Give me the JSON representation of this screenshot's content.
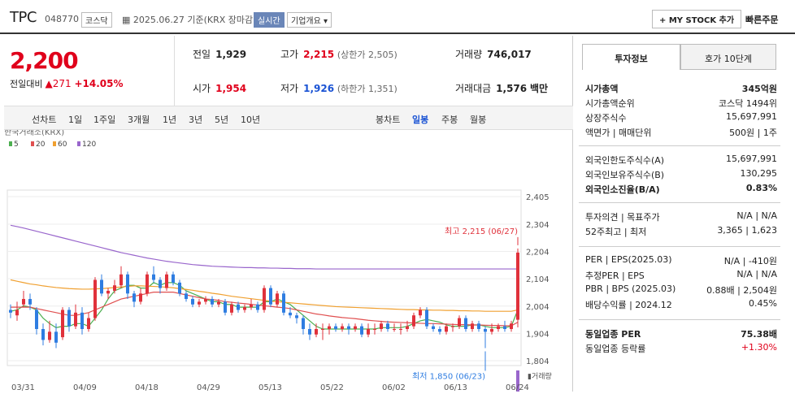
{
  "header": {
    "name": "TPC",
    "code": "048770",
    "market": "코스닥",
    "date": "2025.06.27",
    "basis": "기준(KRX 장마감)",
    "realtime": "실시간",
    "company_info": "기업개요",
    "mystock": "+ MY STOCK 추가",
    "quick_order": "빠른주문"
  },
  "price": {
    "current": "2,200",
    "change_label": "전일대비",
    "change": "▲271",
    "rate": "+14.05%"
  },
  "stats": {
    "prev_label": "전일",
    "prev": "1,929",
    "high_label": "고가",
    "high": "2,215",
    "upper": "(상한가 2,505)",
    "volume_label": "거래량",
    "volume": "746,017",
    "open_label": "시가",
    "open": "1,954",
    "low_label": "저가",
    "low": "1,926",
    "lower": "(하한가 1,351)",
    "amount_label": "거래대금",
    "amount": "1,576",
    "amount_unit": "백만"
  },
  "tabs": {
    "line": "선차트",
    "d1": "1일",
    "w1": "1주일",
    "m3": "3개월",
    "y1": "1년",
    "y3": "3년",
    "y5": "5년",
    "y10": "10년",
    "candle": "봉차트",
    "daily": "일봉",
    "weekly": "주봉",
    "monthly": "월봉"
  },
  "chart_data": {
    "type": "candlestick",
    "source": "한국거래소(KRX)",
    "legend": [
      {
        "name": "5",
        "color": "#4caf50"
      },
      {
        "name": "20",
        "color": "#e05050"
      },
      {
        "name": "60",
        "color": "#f0a030"
      },
      {
        "name": "120",
        "color": "#9966cc"
      }
    ],
    "y_ticks": [
      "2,405",
      "2,304",
      "2,204",
      "2,104",
      "2,004",
      "1,904",
      "1,804"
    ],
    "y_range": [
      1804,
      2405
    ],
    "x_labels": [
      "03/31",
      "04/09",
      "04/18",
      "04/29",
      "05/13",
      "05/22",
      "06/02",
      "06/13",
      "06/24"
    ],
    "max_label": "최고 2,215 (06/27)",
    "min_label": "최저 1,850 (06/23)",
    "volume_label": "거래량",
    "candles": [
      [
        1990,
        1980,
        2010,
        1960
      ],
      [
        1970,
        1990,
        2020,
        1950
      ],
      [
        2010,
        2030,
        2060,
        2000
      ],
      [
        2030,
        2010,
        2050,
        1990
      ],
      [
        1990,
        1920,
        2000,
        1900
      ],
      [
        1920,
        1880,
        1940,
        1860
      ],
      [
        1880,
        1910,
        1950,
        1870
      ],
      [
        1910,
        1870,
        1940,
        1850
      ],
      [
        1890,
        1990,
        2000,
        1880
      ],
      [
        1990,
        1930,
        2000,
        1910
      ],
      [
        1930,
        1980,
        2010,
        1920
      ],
      [
        1980,
        1920,
        2000,
        1900
      ],
      [
        1920,
        1960,
        1980,
        1910
      ],
      [
        1960,
        2100,
        2110,
        1950
      ],
      [
        2100,
        2050,
        2120,
        2040
      ],
      [
        2050,
        2060,
        2070,
        2030
      ],
      [
        2060,
        2080,
        2100,
        2050
      ],
      [
        2080,
        2120,
        2150,
        2070
      ],
      [
        2120,
        2050,
        2130,
        2030
      ],
      [
        2050,
        2020,
        2060,
        2000
      ],
      [
        2020,
        2050,
        2070,
        2010
      ],
      [
        2050,
        2120,
        2130,
        2040
      ],
      [
        2120,
        2100,
        2150,
        2090
      ],
      [
        2100,
        2070,
        2110,
        2050
      ],
      [
        2070,
        2120,
        2130,
        2060
      ],
      [
        2120,
        2090,
        2130,
        2080
      ],
      [
        2090,
        2050,
        2100,
        2040
      ],
      [
        2050,
        2030,
        2060,
        2020
      ],
      [
        2030,
        2010,
        2040,
        2000
      ],
      [
        2010,
        2020,
        2030,
        2000
      ],
      [
        2020,
        2030,
        2040,
        2010
      ],
      [
        2030,
        2010,
        2040,
        2000
      ],
      [
        2010,
        2020,
        2030,
        2000
      ],
      [
        2020,
        1980,
        2030,
        1970
      ],
      [
        1980,
        2010,
        2020,
        1970
      ],
      [
        2010,
        1990,
        2020,
        1980
      ],
      [
        1990,
        2000,
        2010,
        1980
      ],
      [
        2000,
        2010,
        2030,
        1990
      ],
      [
        2010,
        1990,
        2020,
        1980
      ],
      [
        1990,
        2070,
        2080,
        1980
      ],
      [
        2070,
        2010,
        2080,
        2000
      ],
      [
        2010,
        2050,
        2060,
        2000
      ],
      [
        2050,
        1980,
        2060,
        1970
      ],
      [
        1980,
        1970,
        2000,
        1960
      ],
      [
        1970,
        1960,
        1980,
        1940
      ],
      [
        1960,
        1920,
        1970,
        1900
      ],
      [
        1920,
        1900,
        1940,
        1880
      ],
      [
        1900,
        1920,
        1940,
        1890
      ],
      [
        1920,
        1920,
        1940,
        1880
      ],
      [
        1920,
        1930,
        1940,
        1900
      ],
      [
        1930,
        1920,
        1940,
        1910
      ],
      [
        1920,
        1930,
        1940,
        1910
      ],
      [
        1930,
        1920,
        1940,
        1900
      ],
      [
        1920,
        1930,
        1940,
        1910
      ],
      [
        1930,
        1900,
        1940,
        1890
      ],
      [
        1900,
        1920,
        1940,
        1890
      ],
      [
        1920,
        1920,
        1940,
        1900
      ],
      [
        1920,
        1940,
        1950,
        1910
      ],
      [
        1940,
        1920,
        1950,
        1910
      ],
      [
        1920,
        1920,
        1940,
        1910
      ],
      [
        1920,
        1920,
        1940,
        1900
      ],
      [
        1920,
        1930,
        1950,
        1910
      ],
      [
        1930,
        1970,
        1980,
        1920
      ],
      [
        1970,
        1990,
        2000,
        1960
      ],
      [
        1990,
        1930,
        2000,
        1920
      ],
      [
        1930,
        1920,
        1940,
        1910
      ],
      [
        1920,
        1910,
        1930,
        1900
      ],
      [
        1910,
        1930,
        1940,
        1900
      ],
      [
        1930,
        1930,
        1940,
        1910
      ],
      [
        1930,
        1960,
        1970,
        1920
      ],
      [
        1960,
        1920,
        1970,
        1910
      ],
      [
        1920,
        1940,
        1950,
        1910
      ],
      [
        1940,
        1920,
        1950,
        1910
      ],
      [
        1920,
        1910,
        1930,
        1850
      ],
      [
        1910,
        1920,
        1940,
        1900
      ],
      [
        1920,
        1930,
        1940,
        1910
      ],
      [
        1930,
        1920,
        1950,
        1910
      ],
      [
        1920,
        1940,
        1950,
        1910
      ],
      [
        1954,
        2200,
        2215,
        1926
      ]
    ],
    "ma": {
      "5": [
        1985,
        1990,
        2005,
        2000,
        1990,
        1960,
        1940,
        1925,
        1930,
        1930,
        1940,
        1940,
        1930,
        1960,
        1990,
        2030,
        2060,
        2070,
        2080,
        2080,
        2070,
        2070,
        2090,
        2080,
        2090,
        2090,
        2080,
        2060,
        2050,
        2040,
        2030,
        2020,
        2020,
        2010,
        2010,
        2000,
        2000,
        2000,
        2000,
        2020,
        2020,
        2030,
        2020,
        2010,
        1990,
        1970,
        1950,
        1930,
        1920,
        1920,
        1920,
        1920,
        1920,
        1920,
        1920,
        1920,
        1920,
        1925,
        1925,
        1925,
        1925,
        1930,
        1940,
        1950,
        1955,
        1950,
        1945,
        1935,
        1930,
        1930,
        1930,
        1935,
        1935,
        1930,
        1925,
        1925,
        1925,
        1930,
        1990
      ],
      "20": [
        2000,
        2000,
        2000,
        2000,
        1995,
        1990,
        1985,
        1980,
        1975,
        1970,
        1970,
        1975,
        1980,
        1990,
        2000,
        2010,
        2020,
        2030,
        2035,
        2040,
        2045,
        2050,
        2055,
        2055,
        2055,
        2055,
        2050,
        2045,
        2040,
        2035,
        2030,
        2028,
        2025,
        2020,
        2018,
        2015,
        2013,
        2010,
        2008,
        2005,
        2003,
        2000,
        1998,
        1995,
        1990,
        1985,
        1980,
        1975,
        1972,
        1968,
        1965,
        1962,
        1960,
        1958,
        1955,
        1952,
        1950,
        1948,
        1946,
        1945,
        1944,
        1943,
        1942,
        1941,
        1940,
        1940,
        1939,
        1938,
        1937,
        1936,
        1936,
        1935,
        1935,
        1934,
        1933,
        1933,
        1932,
        1932,
        1945
      ],
      "60": [
        2100,
        2095,
        2090,
        2085,
        2082,
        2078,
        2075,
        2072,
        2070,
        2068,
        2067,
        2066,
        2066,
        2067,
        2068,
        2070,
        2072,
        2074,
        2076,
        2078,
        2078,
        2077,
        2076,
        2075,
        2073,
        2071,
        2068,
        2065,
        2062,
        2058,
        2055,
        2051,
        2048,
        2044,
        2040,
        2037,
        2034,
        2031,
        2028,
        2025,
        2022,
        2020,
        2018,
        2016,
        2014,
        2012,
        2010,
        2008,
        2006,
        2004,
        2002,
        2001,
        2000,
        1999,
        1998,
        1997,
        1996,
        1995,
        1994,
        1993,
        1992,
        1991,
        1991,
        1990,
        1990,
        1989,
        1989,
        1988,
        1988,
        1987,
        1987,
        1986,
        1986,
        1985,
        1985,
        1985,
        1985,
        1985,
        1990
      ],
      "120": [
        2300,
        2295,
        2290,
        2284,
        2278,
        2272,
        2266,
        2260,
        2254,
        2248,
        2242,
        2236,
        2230,
        2224,
        2218,
        2212,
        2206,
        2200,
        2195,
        2190,
        2185,
        2180,
        2176,
        2172,
        2168,
        2165,
        2162,
        2159,
        2156,
        2154,
        2152,
        2150,
        2149,
        2148,
        2147,
        2146,
        2145,
        2145,
        2144,
        2144,
        2143,
        2143,
        2142,
        2142,
        2141,
        2141,
        2141,
        2140,
        2140,
        2140,
        2140,
        2140,
        2140,
        2140,
        2140,
        2140,
        2140,
        2140,
        2140,
        2140,
        2140,
        2140,
        2140,
        2140,
        2140,
        2140,
        2140,
        2140,
        2140,
        2140,
        2140,
        2140,
        2140,
        2140,
        2140,
        2140,
        2140,
        2140,
        2140
      ]
    }
  },
  "tabs_right": {
    "invest": "투자정보",
    "quote": "호가 10단계"
  },
  "invest": [
    {
      "k": "시가총액",
      "v": "345억원",
      "bold": true
    },
    {
      "k": "시가총액순위",
      "v": "코스닥 1494위"
    },
    {
      "k": "상장주식수",
      "v": "15,697,991"
    },
    {
      "k": "액면가 | 매매단위",
      "v": "500원 | 1주"
    },
    {
      "k": "외국인한도주식수(A)",
      "v": "15,697,991"
    },
    {
      "k": "외국인보유주식수(B)",
      "v": "130,295"
    },
    {
      "k": "외국인소진율(B/A)",
      "v": "0.83%",
      "bold": true
    },
    {
      "k": "투자의견 | 목표주가",
      "v": "N/A | N/A"
    },
    {
      "k": "52주최고 | 최저",
      "v": "3,365 | 1,623"
    },
    {
      "k": "PER | EPS(2025.03)",
      "v": "N/A | -410원"
    },
    {
      "k": "추정PER | EPS",
      "v": "N/A | N/A"
    },
    {
      "k": "PBR | BPS (2025.03)",
      "v": "0.88배 | 2,504원"
    },
    {
      "k": "배당수익률 | 2024.12",
      "v": "0.45%"
    },
    {
      "k": "동일업종 PER",
      "v": "75.38배",
      "bold": true
    },
    {
      "k": "동일업종 등락률",
      "v": "+1.30%",
      "red": true
    }
  ]
}
